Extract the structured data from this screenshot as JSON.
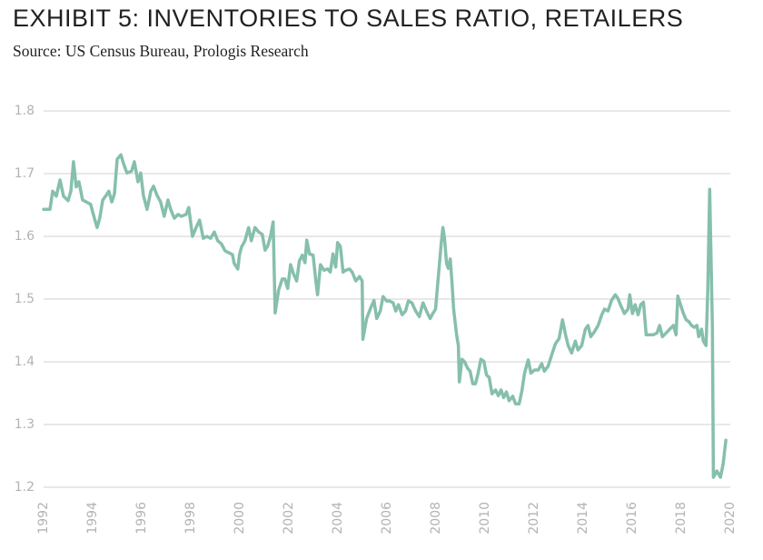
{
  "chart_data": {
    "type": "line",
    "title": "EXHIBIT 5: INVENTORIES TO SALES RATIO, RETAILERS",
    "subtitle": "Source: US Census Bureau, Prologis Research",
    "color": "#86bfad",
    "grid": true,
    "xlim": [
      1992,
      2020
    ],
    "xticks": [
      1992,
      1994,
      1996,
      1998,
      2000,
      2002,
      2004,
      2006,
      2008,
      2010,
      2012,
      2014,
      2016,
      2018,
      2020
    ],
    "ylim": [
      1.2,
      1.8
    ],
    "yticks": [
      1.2,
      1.3,
      1.4,
      1.5,
      1.6,
      1.7,
      1.8
    ],
    "x": [
      1992.0,
      1992.26,
      1992.37,
      1992.52,
      1992.67,
      1992.81,
      1993.0,
      1993.11,
      1993.22,
      1993.33,
      1993.44,
      1993.59,
      1993.74,
      1993.92,
      1994.07,
      1994.18,
      1994.29,
      1994.41,
      1994.55,
      1994.66,
      1994.78,
      1994.89,
      1995.0,
      1995.15,
      1995.26,
      1995.4,
      1995.59,
      1995.7,
      1995.85,
      1995.96,
      1996.07,
      1996.22,
      1996.37,
      1996.48,
      1996.63,
      1996.77,
      1996.92,
      1997.07,
      1997.18,
      1997.33,
      1997.48,
      1997.62,
      1997.81,
      1997.92,
      1998.07,
      1998.22,
      1998.36,
      1998.51,
      1998.66,
      1998.81,
      1998.96,
      1999.1,
      1999.25,
      1999.4,
      1999.55,
      1999.7,
      1999.77,
      1999.92,
      1999.99,
      2000.07,
      2000.21,
      2000.36,
      2000.47,
      2000.62,
      2000.77,
      2000.92,
      2001.03,
      2001.14,
      2001.25,
      2001.36,
      2001.44,
      2001.58,
      2001.73,
      2001.84,
      2001.95,
      2002.07,
      2002.18,
      2002.32,
      2002.43,
      2002.55,
      2002.66,
      2002.73,
      2002.84,
      2002.99,
      2003.1,
      2003.17,
      2003.29,
      2003.43,
      2003.58,
      2003.69,
      2003.8,
      2003.91,
      2003.99,
      2004.1,
      2004.21,
      2004.32,
      2004.47,
      2004.58,
      2004.73,
      2004.88,
      2004.99,
      2005.02,
      2005.17,
      2005.32,
      2005.47,
      2005.58,
      2005.73,
      2005.84,
      2005.99,
      2006.1,
      2006.25,
      2006.36,
      2006.47,
      2006.62,
      2006.76,
      2006.87,
      2007.02,
      2007.17,
      2007.32,
      2007.47,
      2007.61,
      2007.76,
      2007.87,
      2007.98,
      2008.09,
      2008.21,
      2008.28,
      2008.35,
      2008.43,
      2008.5,
      2008.58,
      2008.65,
      2008.72,
      2008.84,
      2008.91,
      2008.95,
      2009.06,
      2009.17,
      2009.28,
      2009.39,
      2009.5,
      2009.61,
      2009.72,
      2009.83,
      2009.95,
      2010.06,
      2010.17,
      2010.28,
      2010.43,
      2010.54,
      2010.65,
      2010.76,
      2010.87,
      2010.98,
      2011.13,
      2011.24,
      2011.39,
      2011.5,
      2011.61,
      2011.76,
      2011.87,
      2012.02,
      2012.17,
      2012.31,
      2012.42,
      2012.57,
      2012.72,
      2012.87,
      2013.02,
      2013.16,
      2013.28,
      2013.39,
      2013.53,
      2013.68,
      2013.79,
      2013.94,
      2014.09,
      2014.2,
      2014.31,
      2014.46,
      2014.61,
      2014.76,
      2014.87,
      2015.01,
      2015.16,
      2015.31,
      2015.42,
      2015.53,
      2015.68,
      2015.83,
      2015.9,
      2016.01,
      2016.12,
      2016.24,
      2016.35,
      2016.46,
      2016.57,
      2016.72,
      2016.86,
      2017.01,
      2017.12,
      2017.23,
      2017.38,
      2017.53,
      2017.68,
      2017.79,
      2017.86,
      2017.97,
      2018.09,
      2018.2,
      2018.31,
      2018.42,
      2018.53,
      2018.64,
      2018.71,
      2018.83,
      2018.9,
      2019.01,
      2019.08,
      2019.16,
      2019.27,
      2019.31,
      2019.45,
      2019.6,
      2019.71,
      2019.82
    ],
    "values": [
      1.643,
      1.643,
      1.672,
      1.664,
      1.69,
      1.664,
      1.657,
      1.672,
      1.719,
      1.679,
      1.687,
      1.658,
      1.655,
      1.651,
      1.629,
      1.614,
      1.629,
      1.658,
      1.665,
      1.672,
      1.655,
      1.668,
      1.723,
      1.73,
      1.716,
      1.701,
      1.704,
      1.719,
      1.687,
      1.701,
      1.665,
      1.643,
      1.672,
      1.68,
      1.665,
      1.655,
      1.632,
      1.658,
      1.643,
      1.629,
      1.635,
      1.632,
      1.635,
      1.646,
      1.6,
      1.614,
      1.626,
      1.597,
      1.6,
      1.597,
      1.607,
      1.593,
      1.588,
      1.577,
      1.574,
      1.571,
      1.557,
      1.548,
      1.571,
      1.583,
      1.593,
      1.614,
      1.593,
      1.614,
      1.607,
      1.603,
      1.578,
      1.585,
      1.6,
      1.623,
      1.478,
      1.514,
      1.532,
      1.532,
      1.517,
      1.555,
      1.541,
      1.529,
      1.561,
      1.57,
      1.558,
      1.594,
      1.572,
      1.57,
      1.529,
      1.507,
      1.555,
      1.546,
      1.548,
      1.543,
      1.572,
      1.551,
      1.59,
      1.584,
      1.543,
      1.546,
      1.548,
      1.543,
      1.529,
      1.536,
      1.529,
      1.436,
      1.469,
      1.484,
      1.498,
      1.469,
      1.481,
      1.504,
      1.497,
      1.497,
      1.494,
      1.481,
      1.491,
      1.475,
      1.481,
      1.497,
      1.494,
      1.481,
      1.472,
      1.494,
      1.481,
      1.469,
      1.477,
      1.484,
      1.533,
      1.588,
      1.614,
      1.597,
      1.557,
      1.549,
      1.564,
      1.527,
      1.484,
      1.443,
      1.426,
      1.368,
      1.404,
      1.4,
      1.39,
      1.385,
      1.365,
      1.365,
      1.382,
      1.404,
      1.401,
      1.379,
      1.375,
      1.349,
      1.355,
      1.346,
      1.355,
      1.343,
      1.352,
      1.338,
      1.345,
      1.333,
      1.333,
      1.353,
      1.382,
      1.403,
      1.382,
      1.387,
      1.387,
      1.397,
      1.385,
      1.393,
      1.411,
      1.429,
      1.437,
      1.467,
      1.443,
      1.426,
      1.414,
      1.433,
      1.419,
      1.426,
      1.452,
      1.458,
      1.44,
      1.448,
      1.458,
      1.475,
      1.484,
      1.481,
      1.498,
      1.507,
      1.501,
      1.49,
      1.477,
      1.484,
      1.507,
      1.477,
      1.491,
      1.475,
      1.491,
      1.495,
      1.443,
      1.443,
      1.443,
      1.446,
      1.458,
      1.44,
      1.446,
      1.452,
      1.458,
      1.443,
      1.505,
      1.491,
      1.477,
      1.467,
      1.464,
      1.458,
      1.455,
      1.458,
      1.44,
      1.452,
      1.433,
      1.426,
      1.513,
      1.675,
      1.455,
      1.216,
      1.226,
      1.216,
      1.238,
      1.275
    ]
  }
}
